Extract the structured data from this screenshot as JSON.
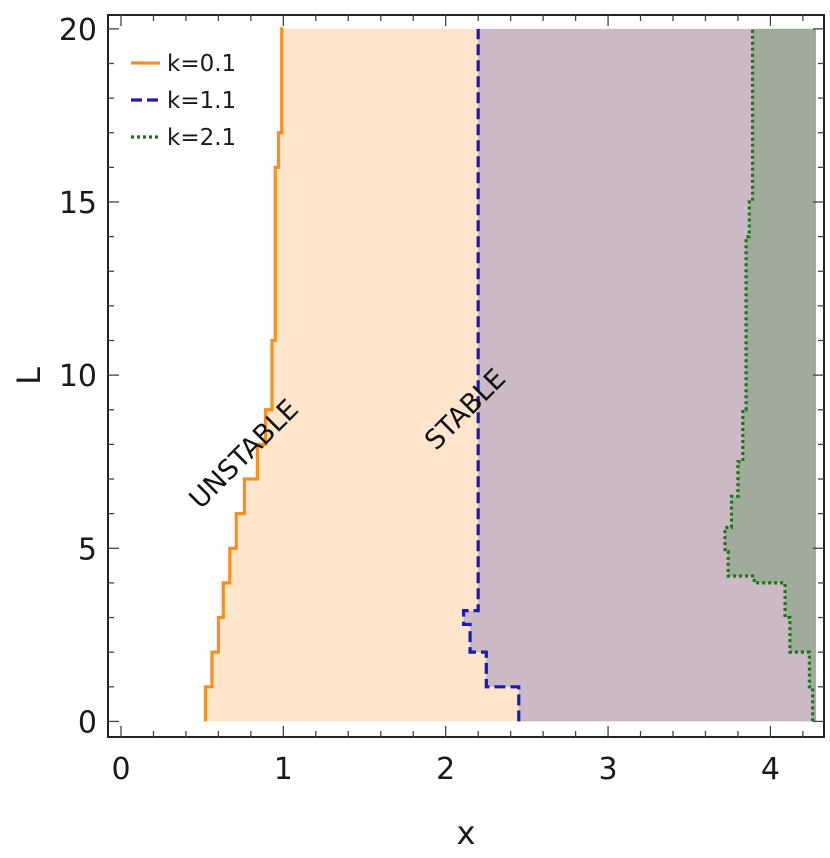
{
  "chart_data": {
    "type": "line",
    "title": "",
    "xlabel": "x",
    "ylabel": "L",
    "xlim": [
      -0.08,
      4.33
    ],
    "ylim": [
      -0.45,
      20.4
    ],
    "xticks": [
      0,
      1,
      2,
      3,
      4
    ],
    "yticks": [
      0,
      5,
      10,
      15,
      20
    ],
    "xtick_labels": [
      "0",
      "1",
      "2",
      "3",
      "4"
    ],
    "ytick_labels": [
      "0",
      "5",
      "10",
      "15",
      "20"
    ],
    "grid": false,
    "legend_position": "top-left",
    "fill_right_limit": 4.28,
    "series": [
      {
        "name": "k=0.1",
        "color": "#f7901e",
        "fill": "#fee5cc",
        "dash": "solid",
        "x": [
          0.52,
          0.52,
          0.56,
          0.56,
          0.6,
          0.6,
          0.63,
          0.63,
          0.67,
          0.67,
          0.71,
          0.71,
          0.76,
          0.76,
          0.84,
          0.84,
          0.89,
          0.89,
          0.93,
          0.93,
          0.95,
          0.95,
          0.97,
          0.97,
          0.99,
          0.99,
          1.0,
          1.0
        ],
        "y": [
          0,
          1,
          1,
          2,
          2,
          3,
          3,
          4,
          4,
          5,
          5,
          6,
          6,
          7,
          7,
          8,
          8,
          9,
          9,
          11,
          11,
          16,
          16,
          17,
          17,
          20,
          20,
          20
        ]
      },
      {
        "name": "k=1.1",
        "color": "#1a1ab4",
        "fill": "#ccb9c6",
        "dash": "dashed",
        "x": [
          2.45,
          2.45,
          2.25,
          2.25,
          2.15,
          2.15,
          2.11,
          2.11,
          2.2,
          2.2
        ],
        "y": [
          0,
          1,
          1,
          2,
          2,
          2.8,
          2.8,
          3.2,
          3.2,
          20
        ]
      },
      {
        "name": "k=2.1",
        "color": "#147a14",
        "fill": "#a1ab9c",
        "dash": "dotted",
        "x": [
          4.26,
          4.26,
          4.24,
          4.24,
          4.12,
          4.12,
          4.09,
          4.09,
          3.9,
          3.9,
          3.74,
          3.74,
          3.72,
          3.72,
          3.76,
          3.76,
          3.8,
          3.8,
          3.83,
          3.83,
          3.85,
          3.85,
          3.87,
          3.87,
          3.89,
          3.89
        ],
        "y": [
          0,
          1,
          1,
          2,
          2,
          3,
          3,
          4,
          4,
          4.2,
          4.2,
          4.9,
          4.9,
          5.6,
          5.6,
          6.5,
          6.5,
          7.5,
          7.5,
          9,
          9,
          14,
          14,
          15,
          15,
          20
        ]
      }
    ],
    "annotations": [
      {
        "text": "UNSTABLE",
        "x": 0.49,
        "y": 6.1,
        "angle": -45
      },
      {
        "text": "STABLE",
        "x": 1.94,
        "y": 7.8,
        "angle": -45
      }
    ]
  }
}
